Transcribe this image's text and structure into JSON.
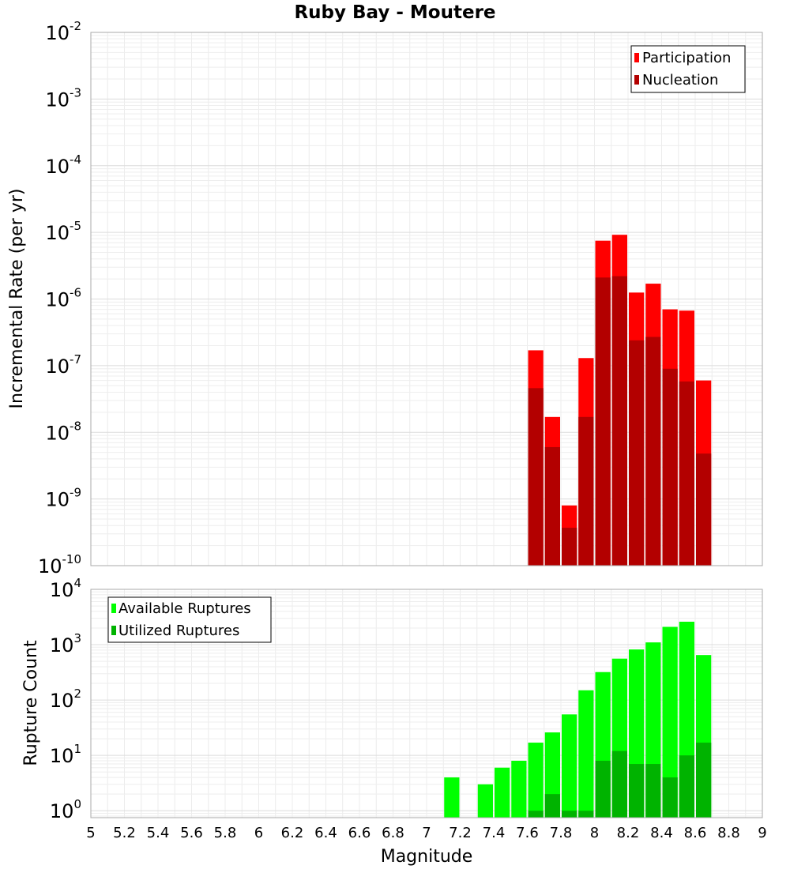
{
  "chart_data": [
    {
      "type": "bar",
      "title": "Ruby Bay - Moutere",
      "ylabel": "Incremental Rate (per yr)",
      "xlabel": "",
      "xlim": [
        5,
        9
      ],
      "ylim": [
        1e-10,
        0.01
      ],
      "yscale": "log",
      "bin_width": 0.1,
      "grid": true,
      "legend_position": "top-right",
      "y_tick_labels": [
        {
          "base": "10",
          "exp": "-10"
        },
        {
          "base": "10",
          "exp": "-9"
        },
        {
          "base": "10",
          "exp": "-8"
        },
        {
          "base": "10",
          "exp": "-7"
        },
        {
          "base": "10",
          "exp": "-6"
        },
        {
          "base": "10",
          "exp": "-5"
        },
        {
          "base": "10",
          "exp": "-4"
        },
        {
          "base": "10",
          "exp": "-3"
        },
        {
          "base": "10",
          "exp": "-2"
        }
      ],
      "x": [
        7.65,
        7.75,
        7.85,
        7.95,
        8.05,
        8.15,
        8.25,
        8.35,
        8.45,
        8.55,
        8.65
      ],
      "series": [
        {
          "name": "Participation",
          "color": "#ff0000",
          "values": [
            1.7e-07,
            1.7e-08,
            8e-10,
            1.3e-07,
            7.5e-06,
            9.2e-06,
            1.25e-06,
            1.7e-06,
            7e-07,
            6.7e-07,
            6e-08
          ]
        },
        {
          "name": "Nucleation",
          "color": "#b30000",
          "values": [
            4.6e-08,
            6e-09,
            3.7e-10,
            1.7e-08,
            2.1e-06,
            2.2e-06,
            2.4e-07,
            2.7e-07,
            9e-08,
            5.8e-08,
            4.8e-09
          ]
        }
      ]
    },
    {
      "type": "bar",
      "title": "",
      "ylabel": "Rupture Count",
      "xlabel": "Magnitude",
      "xlim": [
        5,
        9
      ],
      "ylim": [
        0.75,
        10000
      ],
      "yscale": "log",
      "bin_width": 0.1,
      "grid": true,
      "legend_position": "top-left",
      "x_tick_labels": [
        "5",
        "5.2",
        "5.4",
        "5.6",
        "5.8",
        "6",
        "6.2",
        "6.4",
        "6.6",
        "6.8",
        "7",
        "7.2",
        "7.4",
        "7.6",
        "7.8",
        "8",
        "8.2",
        "8.4",
        "8.6",
        "8.8",
        "9"
      ],
      "y_tick_labels": [
        {
          "base": "10",
          "exp": "0"
        },
        {
          "base": "10",
          "exp": "1"
        },
        {
          "base": "10",
          "exp": "2"
        },
        {
          "base": "10",
          "exp": "3"
        },
        {
          "base": "10",
          "exp": "4"
        }
      ],
      "x": [
        7.15,
        7.35,
        7.45,
        7.55,
        7.65,
        7.75,
        7.85,
        7.95,
        8.05,
        8.15,
        8.25,
        8.35,
        8.45,
        8.55,
        8.65
      ],
      "series": [
        {
          "name": "Available Ruptures",
          "color": "#00ff00",
          "values": [
            4,
            3,
            6,
            8,
            17,
            26,
            55,
            150,
            320,
            560,
            820,
            1100,
            2100,
            2600,
            650
          ]
        },
        {
          "name": "Utilized Ruptures",
          "color": "#00b300",
          "values": [
            0,
            0,
            0,
            0,
            1,
            2,
            1,
            1,
            8,
            12,
            7,
            7,
            4,
            10,
            17
          ]
        }
      ]
    }
  ]
}
